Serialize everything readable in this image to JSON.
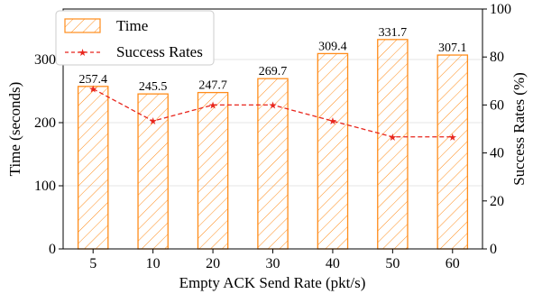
{
  "chart_data": {
    "type": "bar",
    "categories": [
      "5",
      "10",
      "20",
      "30",
      "40",
      "50",
      "60"
    ],
    "series": [
      {
        "name": "Time",
        "type": "bar",
        "axis": "left",
        "values": [
          257.4,
          245.5,
          247.7,
          269.7,
          309.4,
          331.7,
          307.1
        ],
        "value_labels": [
          "257.4",
          "245.5",
          "247.7",
          "269.7",
          "309.4",
          "331.7",
          "307.1"
        ]
      },
      {
        "name": "Success Rates",
        "type": "line",
        "axis": "right",
        "values": [
          66.7,
          53.3,
          60.0,
          60.0,
          53.3,
          46.7,
          46.7
        ]
      }
    ],
    "xlabel": "Empty ACK Send Rate (pkt/s)",
    "ylabel_left": "Time (seconds)",
    "ylabel_right": "Success Rates (%)",
    "ylim_left": [
      0,
      380
    ],
    "ylim_right": [
      0,
      100
    ],
    "yticks_left": [
      0,
      100,
      200,
      300
    ],
    "yticks_right": [
      0,
      20,
      40,
      60,
      80,
      100
    ],
    "grid": "horizontal",
    "legend_position": "top-left",
    "colors": {
      "bar_edge": "#ff8c1a",
      "line": "#e8251c",
      "marker": "#e8251c",
      "grid": "#e6e6e6"
    }
  }
}
